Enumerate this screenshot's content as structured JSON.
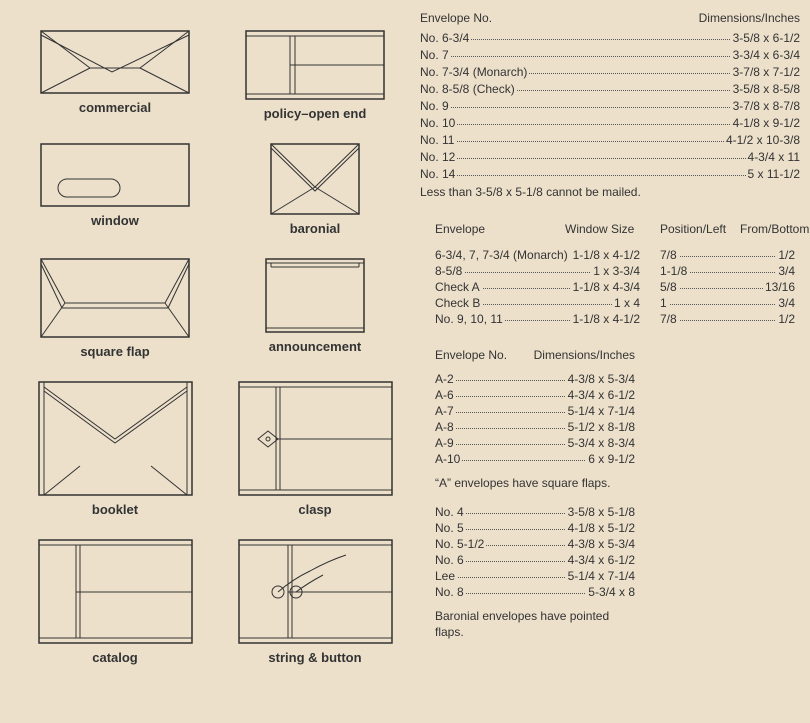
{
  "envelopes": [
    {
      "key": "commercial",
      "label": "commercial"
    },
    {
      "key": "policy",
      "label": "policy–open end"
    },
    {
      "key": "window",
      "label": "window"
    },
    {
      "key": "baronial",
      "label": "baronial"
    },
    {
      "key": "squareflap",
      "label": "square flap"
    },
    {
      "key": "announcement",
      "label": "announcement"
    },
    {
      "key": "booklet",
      "label": "booklet"
    },
    {
      "key": "clasp",
      "label": "clasp"
    },
    {
      "key": "catalog",
      "label": "catalog"
    },
    {
      "key": "stringbutton",
      "label": "string & button"
    }
  ],
  "t1": {
    "hleft": "Envelope No.",
    "hright": "Dimensions/Inches",
    "rows": [
      {
        "l": "No. 6-3/4",
        "v": "3-5/8 x 6-1/2"
      },
      {
        "l": "No. 7",
        "v": "3-3/4 x 6-3/4"
      },
      {
        "l": "No. 7-3/4 (Monarch)",
        "v": "3-7/8 x 7-1/2"
      },
      {
        "l": "No. 8-5/8 (Check)",
        "v": "3-5/8 x 8-5/8"
      },
      {
        "l": "No. 9",
        "v": "3-7/8 x 8-7/8"
      },
      {
        "l": "No. 10",
        "v": "4-1/8 x 9-1/2"
      },
      {
        "l": "No. 11",
        "v": "4-1/2 x 10-3/8"
      },
      {
        "l": "No. 12",
        "v": "4-3/4 x 11"
      },
      {
        "l": "No. 14",
        "v": "5 x 11-1/2"
      }
    ],
    "note": "Less than 3-5/8 x 5-1/8 cannot be mailed."
  },
  "t2": {
    "h": [
      "Envelope",
      "Window Size",
      "Position/Left",
      "From/Bottom"
    ],
    "rows": [
      {
        "c1": "6-3/4, 7, 7-3/4 (Monarch)",
        "c2": "1-1/8 x 4-1/2",
        "c3": "7/8",
        "c4": "1/2"
      },
      {
        "c1": "8-5/8",
        "c2": "1 x 3-3/4",
        "c3": "1-1/8",
        "c4": "3/4"
      },
      {
        "c1": "Check A",
        "c2": "1-1/8 x 4-3/4",
        "c3": "5/8",
        "c4": "13/16"
      },
      {
        "c1": "Check B",
        "c2": "1 x 4",
        "c3": "1",
        "c4": "3/4"
      },
      {
        "c1": "No. 9, 10, 11",
        "c2": "1-1/8 x 4-1/2",
        "c3": "7/8",
        "c4": "1/2"
      }
    ]
  },
  "t3": {
    "hleft": "Envelope No.",
    "hright": "Dimensions/Inches",
    "rowsA": [
      {
        "l": "A-2",
        "v": "4-3/8 x 5-3/4"
      },
      {
        "l": "A-6",
        "v": "4-3/4 x 6-1/2"
      },
      {
        "l": "A-7",
        "v": "5-1/4 x 7-1/4"
      },
      {
        "l": "A-8",
        "v": "5-1/2 x 8-1/8"
      },
      {
        "l": "A-9",
        "v": "5-3/4 x 8-3/4"
      },
      {
        "l": "A-10",
        "v": "6 x 9-1/2"
      }
    ],
    "noteA": "“A” envelopes have square flaps.",
    "rowsB": [
      {
        "l": "No. 4",
        "v": "3-5/8 x 5-1/8"
      },
      {
        "l": "No. 5",
        "v": "4-1/8 x 5-1/2"
      },
      {
        "l": "No. 5-1/2",
        "v": "4-3/8 x 5-3/4"
      },
      {
        "l": "No. 6",
        "v": "4-3/4 x 6-1/2"
      },
      {
        "l": "Lee",
        "v": "5-1/4 x 7-1/4"
      },
      {
        "l": "No. 8",
        "v": "5-3/4 x 8"
      }
    ],
    "noteB": "Baronial envelopes have pointed flaps."
  },
  "colors": {
    "bg": "#ece0cb",
    "stroke": "#333333",
    "text": "#333333"
  }
}
